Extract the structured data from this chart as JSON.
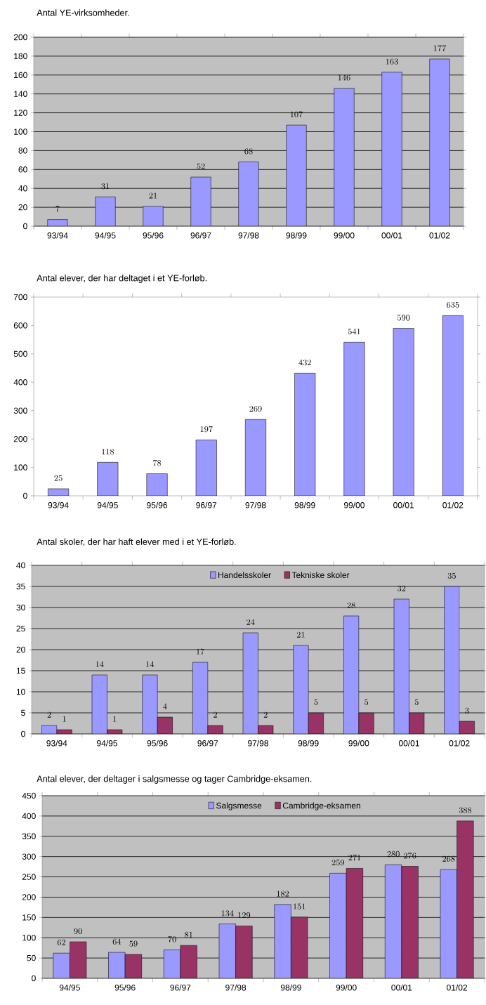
{
  "chart_data": [
    {
      "type": "bar",
      "title": "Antal YE-virksomheder.",
      "categories": [
        "93/94",
        "94/95",
        "95/96",
        "96/97",
        "97/98",
        "98/99",
        "99/00",
        "00/01",
        "01/02"
      ],
      "values": [
        7,
        31,
        21,
        52,
        68,
        107,
        146,
        163,
        177
      ],
      "color": "#9999ff",
      "ylim": [
        0,
        200
      ],
      "yticks": [
        0,
        20,
        40,
        60,
        80,
        100,
        120,
        140,
        160,
        180,
        200
      ],
      "grid": "y",
      "data_labels": true
    },
    {
      "type": "bar",
      "title": "Antal elever, der har deltaget i et YE-forløb.",
      "categories": [
        "93/94",
        "94/95",
        "95/96",
        "96/97",
        "97/98",
        "98/99",
        "99/00",
        "00/01",
        "01/02"
      ],
      "values": [
        25,
        118,
        78,
        197,
        269,
        432,
        541,
        590,
        635
      ],
      "color": "#9999ff",
      "ylim": [
        0,
        700
      ],
      "yticks": [
        0,
        100,
        200,
        300,
        400,
        500,
        600,
        700
      ],
      "data_labels": true
    },
    {
      "type": "bar",
      "title": "Antal skoler, der har haft elever med i et YE-forløb.",
      "categories": [
        "93/94",
        "94/95",
        "95/96",
        "96/97",
        "97/98",
        "98/99",
        "99/00",
        "00/01",
        "01/02"
      ],
      "series": [
        {
          "name": "Handelsskoler",
          "color": "#9999ff",
          "values": [
            2,
            14,
            14,
            17,
            24,
            21,
            28,
            32,
            35
          ]
        },
        {
          "name": "Tekniske skoler",
          "color": "#993366",
          "values": [
            1,
            1,
            4,
            2,
            2,
            5,
            5,
            5,
            3
          ]
        }
      ],
      "ylim": [
        0,
        40
      ],
      "yticks": [
        0,
        5,
        10,
        15,
        20,
        25,
        30,
        35,
        40
      ],
      "grid": "y",
      "legend": "top",
      "data_labels": true
    },
    {
      "type": "bar",
      "title": "Antal elever, der deltager i salgsmesse og tager Cambridge-eksamen.",
      "categories": [
        "94/95",
        "95/96",
        "96/97",
        "97/98",
        "98/99",
        "99/00",
        "00/01",
        "01/02"
      ],
      "series": [
        {
          "name": "Salgsmesse",
          "color": "#9999ff",
          "values": [
            62,
            64,
            70,
            134,
            182,
            259,
            280,
            268
          ]
        },
        {
          "name": "Cambridge-eksamen",
          "color": "#993366",
          "values": [
            90,
            59,
            81,
            129,
            151,
            271,
            276,
            388
          ]
        }
      ],
      "ylim": [
        0,
        450
      ],
      "yticks": [
        0,
        50,
        100,
        150,
        200,
        250,
        300,
        350,
        400,
        450
      ],
      "grid": "y",
      "legend": "top",
      "data_labels": true
    }
  ]
}
